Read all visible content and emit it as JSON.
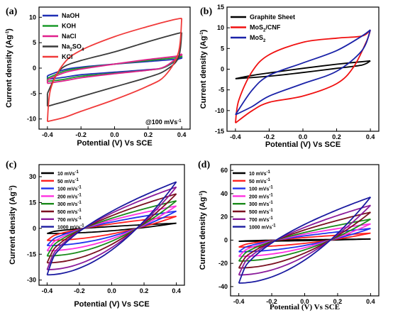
{
  "chart_data": [
    {
      "type": "line",
      "panel_label": "(a)",
      "xlabel": "Potential (V) Vs SCE",
      "ylabel": "Current density (Ag",
      "ylabel_sup": "-1",
      "xlim": [
        -0.45,
        0.45
      ],
      "ylim": [
        -12,
        12
      ],
      "xticks": [
        "-0.4",
        "-0.2",
        "0.0",
        "0.2",
        "0.4"
      ],
      "yticks": [
        "-10",
        "-5",
        "0",
        "5",
        "10"
      ],
      "annotation": "@100 mVs",
      "annotation_sup": "-1",
      "legend_position": "top-left",
      "series": [
        {
          "name": "NaOH",
          "color": "#1f2fb5",
          "x_range": [
            -0.4,
            0.4
          ],
          "upper": [
            [
              -0.4,
              -1.5
            ],
            [
              -0.3,
              -0.3
            ],
            [
              -0.2,
              0.2
            ],
            [
              0.0,
              0.8
            ],
            [
              0.2,
              1.3
            ],
            [
              0.38,
              1.8
            ],
            [
              0.4,
              2.2
            ]
          ],
          "lower": [
            [
              -0.4,
              -2.2
            ],
            [
              -0.3,
              -1.8
            ],
            [
              -0.2,
              -1.3
            ],
            [
              0.0,
              -0.8
            ],
            [
              0.2,
              -0.3
            ],
            [
              0.3,
              0.2
            ],
            [
              0.4,
              2.2
            ]
          ]
        },
        {
          "name": "KOH",
          "color": "#1a9a2a",
          "x_range": [
            -0.4,
            0.4
          ],
          "upper": [
            [
              -0.4,
              -2.0
            ],
            [
              -0.3,
              -0.6
            ],
            [
              -0.2,
              0.0
            ],
            [
              0.0,
              0.8
            ],
            [
              0.2,
              1.5
            ],
            [
              0.38,
              2.1
            ],
            [
              0.4,
              2.5
            ]
          ],
          "lower": [
            [
              -0.4,
              -2.6
            ],
            [
              -0.3,
              -2.2
            ],
            [
              -0.2,
              -1.6
            ],
            [
              0.0,
              -1.0
            ],
            [
              0.2,
              -0.4
            ],
            [
              0.3,
              0.2
            ],
            [
              0.4,
              2.5
            ]
          ]
        },
        {
          "name": "NaCl",
          "color": "#e0208c",
          "x_range": [
            -0.4,
            0.4
          ],
          "upper": [
            [
              -0.4,
              -2.3
            ],
            [
              -0.3,
              -0.9
            ],
            [
              -0.2,
              -0.2
            ],
            [
              0.0,
              0.8
            ],
            [
              0.2,
              1.7
            ],
            [
              0.38,
              2.4
            ],
            [
              0.4,
              2.8
            ]
          ],
          "lower": [
            [
              -0.4,
              -3.0
            ],
            [
              -0.3,
              -2.5
            ],
            [
              -0.2,
              -1.9
            ],
            [
              0.0,
              -1.1
            ],
            [
              0.2,
              -0.4
            ],
            [
              0.3,
              0.3
            ],
            [
              0.4,
              2.8
            ]
          ]
        },
        {
          "name": "Na2SO4",
          "color": "#3a3a3a",
          "x_range": [
            -0.4,
            0.4
          ],
          "upper": [
            [
              -0.4,
              -5.0
            ],
            [
              -0.35,
              -1.5
            ],
            [
              -0.3,
              0.3
            ],
            [
              -0.2,
              1.5
            ],
            [
              0.0,
              3.2
            ],
            [
              0.2,
              5.2
            ],
            [
              0.35,
              6.6
            ],
            [
              0.4,
              7.0
            ]
          ],
          "lower": [
            [
              -0.4,
              -7.5
            ],
            [
              -0.3,
              -6.6
            ],
            [
              -0.2,
              -5.6
            ],
            [
              0.0,
              -3.7
            ],
            [
              0.2,
              -1.8
            ],
            [
              0.3,
              -0.5
            ],
            [
              0.38,
              2.0
            ],
            [
              0.4,
              7.0
            ]
          ]
        },
        {
          "name": "KCl",
          "color": "#f03a3a",
          "x_range": [
            -0.4,
            0.4
          ],
          "upper": [
            [
              -0.4,
              -10.5
            ],
            [
              -0.38,
              -4.0
            ],
            [
              -0.3,
              1.0
            ],
            [
              -0.2,
              3.5
            ],
            [
              0.0,
              6.2
            ],
            [
              0.2,
              8.2
            ],
            [
              0.35,
              9.5
            ],
            [
              0.4,
              9.8
            ]
          ],
          "lower": [
            [
              -0.4,
              -10.5
            ],
            [
              -0.3,
              -9.7
            ],
            [
              -0.2,
              -8.5
            ],
            [
              0.0,
              -6.2
            ],
            [
              0.2,
              -3.5
            ],
            [
              0.3,
              -1.5
            ],
            [
              0.38,
              3.0
            ],
            [
              0.4,
              9.8
            ]
          ]
        }
      ]
    },
    {
      "type": "line",
      "panel_label": "(b)",
      "xlabel": "Potential (V) Vs SCE",
      "ylabel": "Current density (Ag",
      "ylabel_sup": "-1",
      "xlim": [
        -0.45,
        0.45
      ],
      "ylim": [
        -15,
        15
      ],
      "xticks": [
        "-0.4",
        "-0.2",
        "0.0",
        "0.2",
        "0.4"
      ],
      "yticks": [
        "-15",
        "-10",
        "-5",
        "0",
        "5",
        "10",
        "15"
      ],
      "legend_position": "top-left",
      "series": [
        {
          "name": "Graphite Sheet",
          "color": "#000000",
          "upper": [
            [
              -0.4,
              -2.3
            ],
            [
              -0.3,
              -1.5
            ],
            [
              -0.2,
              -0.9
            ],
            [
              0.0,
              0.2
            ],
            [
              0.2,
              1.2
            ],
            [
              0.4,
              2.0
            ]
          ],
          "lower": [
            [
              -0.4,
              -2.3
            ],
            [
              -0.2,
              -1.7
            ],
            [
              0.0,
              -0.8
            ],
            [
              0.2,
              0.2
            ],
            [
              0.35,
              1.0
            ],
            [
              0.4,
              2.0
            ]
          ]
        },
        {
          "name": "MoS2/CNF",
          "color": "#f01010",
          "upper": [
            [
              -0.4,
              -13.0
            ],
            [
              -0.38,
              -7.5
            ],
            [
              -0.3,
              -0.5
            ],
            [
              -0.2,
              3.5
            ],
            [
              0.0,
              6.5
            ],
            [
              0.2,
              7.5
            ],
            [
              0.35,
              8.0
            ],
            [
              0.4,
              9.5
            ]
          ],
          "lower": [
            [
              -0.4,
              -13.0
            ],
            [
              -0.3,
              -10.0
            ],
            [
              -0.2,
              -8.0
            ],
            [
              0.0,
              -6.5
            ],
            [
              0.2,
              -3.5
            ],
            [
              0.3,
              0.5
            ],
            [
              0.38,
              7.0
            ],
            [
              0.4,
              9.5
            ]
          ]
        },
        {
          "name": "MoS2",
          "color": "#1a22a8",
          "upper": [
            [
              -0.4,
              -11.0
            ],
            [
              -0.3,
              -5.0
            ],
            [
              -0.2,
              -1.5
            ],
            [
              0.0,
              1.5
            ],
            [
              0.2,
              4.5
            ],
            [
              0.35,
              8.0
            ],
            [
              0.4,
              9.5
            ]
          ],
          "lower": [
            [
              -0.4,
              -11.0
            ],
            [
              -0.3,
              -9.0
            ],
            [
              -0.2,
              -6.5
            ],
            [
              0.0,
              -3.5
            ],
            [
              0.2,
              -0.5
            ],
            [
              0.35,
              4.5
            ],
            [
              0.4,
              9.5
            ]
          ]
        }
      ]
    },
    {
      "type": "line",
      "panel_label": "(c)",
      "xlabel": "Potential (V) Vs SCE",
      "ylabel": "Current density (Ag",
      "ylabel_sup": "-1",
      "xlim": [
        -0.45,
        0.45
      ],
      "ylim": [
        -33,
        37
      ],
      "xticks": [
        "-0.4",
        "-0.2",
        "0.0",
        "0.2",
        "0.4"
      ],
      "yticks": [
        "-30",
        "-15",
        "0",
        "15",
        "30"
      ],
      "legend_position": "top-left",
      "series": [
        {
          "name": "10 mVs",
          "color": "#000000",
          "amp": 3
        },
        {
          "name": "50 mVs",
          "color": "#ff2020",
          "amp": 7
        },
        {
          "name": "100 mVs",
          "color": "#2233ee",
          "amp": 10
        },
        {
          "name": "200 mVs",
          "color": "#ff30e0",
          "amp": 13
        },
        {
          "name": "300 mVs",
          "color": "#1a8a1a",
          "amp": 16
        },
        {
          "name": "500 mVs",
          "color": "#7a1020",
          "amp": 20
        },
        {
          "name": "700 mVs",
          "color": "#8a1a9a",
          "amp": 24
        },
        {
          "name": "1000 mVs",
          "color": "#1a1aa0",
          "amp": 27
        }
      ],
      "legend_sup": "-1"
    },
    {
      "type": "line",
      "panel_label": "(d)",
      "xlabel": "Potential (V) Vs SCE",
      "ylabel": "Current density (Ag",
      "ylabel_sup": "-1",
      "xlim": [
        -0.45,
        0.45
      ],
      "ylim": [
        -48,
        65
      ],
      "xticks": [
        "-0.4",
        "-0.2",
        "0.0",
        "0.2",
        "0.4"
      ],
      "yticks": [
        "-40",
        "-20",
        "0",
        "20",
        "40",
        "60"
      ],
      "legend_position": "top-left",
      "series": [
        {
          "name": "10 mVs",
          "color": "#000000",
          "amp": 1
        },
        {
          "name": "50 mVs",
          "color": "#ff2020",
          "amp": 6
        },
        {
          "name": "100 mVs",
          "color": "#2233ee",
          "amp": 10
        },
        {
          "name": "200 mVs",
          "color": "#ff30e0",
          "amp": 14
        },
        {
          "name": "300 mVs",
          "color": "#1a8a1a",
          "amp": 18
        },
        {
          "name": "500 mVs",
          "color": "#7a1020",
          "amp": 24
        },
        {
          "name": "700 mVs",
          "color": "#8a1a9a",
          "amp": 30
        },
        {
          "name": "1000 mVs",
          "color": "#1a1aa0",
          "amp": 37
        }
      ],
      "legend_sup": "-1"
    }
  ]
}
